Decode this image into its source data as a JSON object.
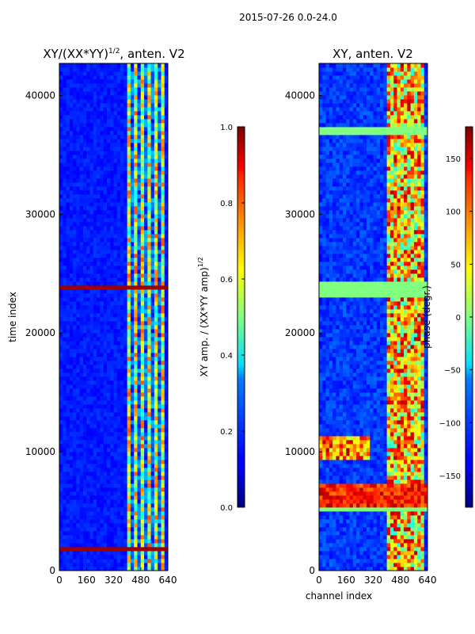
{
  "figure": {
    "suptitle": "2015-07-26 0.0-24.0"
  },
  "chart_data": [
    {
      "type": "heatmap",
      "title": "XY/(XX*YY)",
      "title_superscript": "1/2",
      "title_suffix": ", anten. V2",
      "xlabel": "",
      "ylabel": "time index",
      "xlim": [
        0,
        640
      ],
      "ylim": [
        0,
        42700
      ],
      "xticks": [
        0,
        160,
        320,
        480,
        640
      ],
      "yticks": [
        0,
        10000,
        20000,
        30000,
        40000
      ],
      "ytick_labels": [
        "0",
        "10000",
        "20000",
        "30000",
        "40000"
      ],
      "colorbar": {
        "label": "XY amp. / (XX*YY amp)",
        "label_superscript": "1/2",
        "range": [
          0.0,
          1.0
        ],
        "ticks": [
          0.0,
          0.2,
          0.4,
          0.6,
          0.8,
          1.0
        ],
        "tick_labels": [
          "0.0",
          "0.2",
          "0.4",
          "0.6",
          "0.8",
          "1.0"
        ]
      },
      "active_channel_band": [
        400,
        640
      ],
      "flagged_time_bands": [
        [
          1750,
          2150
        ],
        [
          23600,
          24000
        ]
      ]
    },
    {
      "type": "heatmap",
      "title": "XY, anten. V2",
      "xlabel": "channel index",
      "ylabel": "",
      "xlim": [
        0,
        640
      ],
      "ylim": [
        0,
        42700
      ],
      "xticks": [
        0,
        160,
        320,
        480,
        640
      ],
      "yticks": [
        0,
        10000,
        20000,
        30000,
        40000
      ],
      "ytick_labels": [
        "0",
        "10000",
        "20000",
        "30000",
        "40000"
      ],
      "colorbar": {
        "label": "phase (degr.)",
        "range": [
          -180,
          180
        ],
        "ticks": [
          -150,
          -100,
          -50,
          0,
          50,
          100,
          150
        ],
        "tick_labels": [
          "−150",
          "−100",
          "−50",
          "0",
          "50",
          "100",
          "150"
        ]
      },
      "active_channel_band": [
        400,
        640
      ],
      "flagged_time_bands": [
        [
          23000,
          24500
        ],
        [
          36800,
          37200
        ],
        [
          5000,
          5400
        ]
      ]
    }
  ]
}
